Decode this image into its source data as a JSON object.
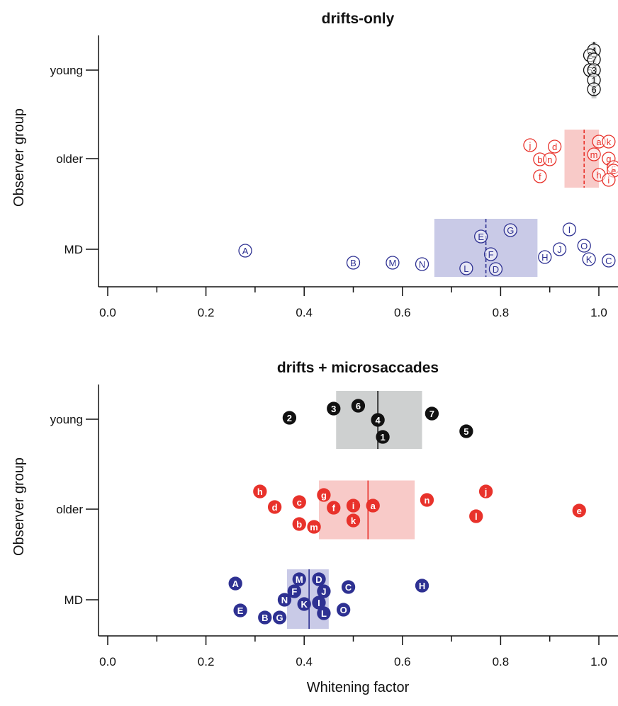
{
  "colors": {
    "young": "#111111",
    "older": "#e8322b",
    "md": "#2e3192",
    "young_box": "#c9cbcb",
    "older_box": "#f7c4c2",
    "md_box": "#c3c4e4"
  },
  "chart_data": [
    {
      "type": "scatter",
      "title": "drifts-only",
      "xlabel": "",
      "ylabel": "Observer group",
      "xlim": [
        -0.02,
        1.05
      ],
      "xticks": [
        "0.0",
        "0.2",
        "0.4",
        "0.6",
        "0.8",
        "1.0"
      ],
      "categories": [
        "young",
        "older",
        "MD"
      ],
      "marker_style": "open",
      "summary": [
        {
          "group": "young",
          "median": 0.99,
          "box": [
            0.985,
            0.995
          ],
          "line": "dashed"
        },
        {
          "group": "older",
          "median": 0.97,
          "box": [
            0.93,
            1.0
          ],
          "line": "dashed"
        },
        {
          "group": "MD",
          "median": 0.77,
          "box": [
            0.665,
            0.875
          ],
          "line": "dashed"
        }
      ],
      "series": [
        {
          "name": "young",
          "points": [
            {
              "label": "4",
              "x": 0.99
            },
            {
              "label": "2",
              "x": 0.982
            },
            {
              "label": "7",
              "x": 0.99
            },
            {
              "label": "5",
              "x": 0.982
            },
            {
              "label": "3",
              "x": 0.99
            },
            {
              "label": "1",
              "x": 0.99
            },
            {
              "label": "6",
              "x": 0.99
            }
          ]
        },
        {
          "name": "older",
          "points": [
            {
              "label": "j",
              "x": 0.86
            },
            {
              "label": "d",
              "x": 0.91
            },
            {
              "label": "a",
              "x": 1.0
            },
            {
              "label": "k",
              "x": 1.02
            },
            {
              "label": "b",
              "x": 0.88
            },
            {
              "label": "n",
              "x": 0.9
            },
            {
              "label": "m",
              "x": 0.99
            },
            {
              "label": "g",
              "x": 1.02
            },
            {
              "label": "c",
              "x": 1.03
            },
            {
              "label": "f",
              "x": 0.88
            },
            {
              "label": "h",
              "x": 1.0
            },
            {
              "label": "e",
              "x": 1.03
            },
            {
              "label": "i",
              "x": 1.02
            }
          ]
        },
        {
          "name": "MD",
          "points": [
            {
              "label": "A",
              "x": 0.28
            },
            {
              "label": "B",
              "x": 0.5
            },
            {
              "label": "M",
              "x": 0.58
            },
            {
              "label": "N",
              "x": 0.64
            },
            {
              "label": "L",
              "x": 0.73
            },
            {
              "label": "E",
              "x": 0.76
            },
            {
              "label": "F",
              "x": 0.78
            },
            {
              "label": "D",
              "x": 0.79
            },
            {
              "label": "G",
              "x": 0.82
            },
            {
              "label": "H",
              "x": 0.89
            },
            {
              "label": "J",
              "x": 0.92
            },
            {
              "label": "I",
              "x": 0.94
            },
            {
              "label": "O",
              "x": 0.97
            },
            {
              "label": "K",
              "x": 0.98
            },
            {
              "label": "C",
              "x": 1.02
            }
          ]
        }
      ]
    },
    {
      "type": "scatter",
      "title": "drifts + microsaccades",
      "xlabel": "Whitening factor",
      "ylabel": "Observer group",
      "xlim": [
        -0.02,
        1.05
      ],
      "xticks": [
        "0.0",
        "0.2",
        "0.4",
        "0.6",
        "0.8",
        "1.0"
      ],
      "categories": [
        "young",
        "older",
        "MD"
      ],
      "marker_style": "filled",
      "summary": [
        {
          "group": "young",
          "median": 0.55,
          "box": [
            0.465,
            0.64
          ],
          "line": "solid"
        },
        {
          "group": "older",
          "median": 0.53,
          "box": [
            0.43,
            0.625
          ],
          "line": "solid"
        },
        {
          "group": "MD",
          "median": 0.41,
          "box": [
            0.365,
            0.45
          ],
          "line": "solid"
        }
      ],
      "series": [
        {
          "name": "young",
          "points": [
            {
              "label": "2",
              "x": 0.37
            },
            {
              "label": "3",
              "x": 0.46
            },
            {
              "label": "6",
              "x": 0.51
            },
            {
              "label": "4",
              "x": 0.55
            },
            {
              "label": "1",
              "x": 0.56
            },
            {
              "label": "7",
              "x": 0.66
            },
            {
              "label": "5",
              "x": 0.73
            }
          ]
        },
        {
          "name": "older",
          "points": [
            {
              "label": "h",
              "x": 0.31
            },
            {
              "label": "d",
              "x": 0.34
            },
            {
              "label": "c",
              "x": 0.39
            },
            {
              "label": "b",
              "x": 0.39
            },
            {
              "label": "m",
              "x": 0.42
            },
            {
              "label": "g",
              "x": 0.44
            },
            {
              "label": "f",
              "x": 0.46
            },
            {
              "label": "i",
              "x": 0.5
            },
            {
              "label": "k",
              "x": 0.5
            },
            {
              "label": "a",
              "x": 0.54
            },
            {
              "label": "n",
              "x": 0.65
            },
            {
              "label": "l",
              "x": 0.75
            },
            {
              "label": "j",
              "x": 0.77
            },
            {
              "label": "e",
              "x": 0.96
            }
          ]
        },
        {
          "name": "MD",
          "points": [
            {
              "label": "A",
              "x": 0.26
            },
            {
              "label": "E",
              "x": 0.27
            },
            {
              "label": "B",
              "x": 0.32
            },
            {
              "label": "G",
              "x": 0.35
            },
            {
              "label": "N",
              "x": 0.36
            },
            {
              "label": "F",
              "x": 0.38
            },
            {
              "label": "M",
              "x": 0.39
            },
            {
              "label": "K",
              "x": 0.4
            },
            {
              "label": "D",
              "x": 0.43
            },
            {
              "label": "I",
              "x": 0.43
            },
            {
              "label": "J",
              "x": 0.44
            },
            {
              "label": "L",
              "x": 0.44
            },
            {
              "label": "C",
              "x": 0.49
            },
            {
              "label": "O",
              "x": 0.48
            },
            {
              "label": "H",
              "x": 0.64
            }
          ]
        }
      ]
    }
  ]
}
